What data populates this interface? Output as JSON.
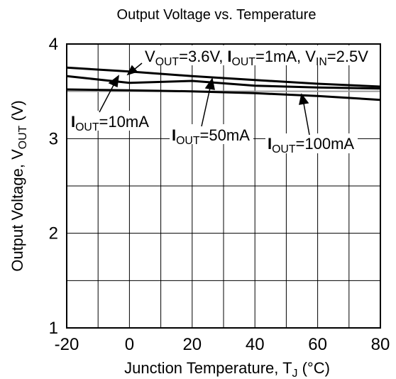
{
  "chart_data": {
    "type": "line",
    "title": "Output Voltage vs. Temperature",
    "xlabel": "Junction Temperature, T_J (°C)",
    "xlabel_parts": [
      "Junction Temperature, T",
      "J",
      " (°C)"
    ],
    "ylabel": "Output Voltage, V_OUT (V)",
    "ylabel_parts": [
      "Output Voltage, V",
      "OUT",
      " (V)"
    ],
    "xlim": [
      -20,
      80
    ],
    "ylim": [
      1,
      4
    ],
    "x_ticks": [
      -20,
      0,
      20,
      40,
      60,
      80
    ],
    "x_tick_labels": [
      "-20",
      "0",
      "20",
      "40",
      "60",
      "80"
    ],
    "x_minor_step": 10,
    "y_ticks": [
      1,
      2,
      3,
      4
    ],
    "y_tick_labels": [
      "1",
      "2",
      "3",
      "4"
    ],
    "y_minor_step": 0.5,
    "grid": true,
    "reference_line": 3.5,
    "condition_label_parts": [
      "V",
      "OUT",
      "=3.6V, ",
      "I",
      "OUT",
      "=1mA, V",
      "IN",
      "=2.5V"
    ],
    "series": [
      {
        "name": "I_OUT=10mA",
        "label_parts": [
          "I",
          "OUT",
          "=10mA"
        ],
        "x": [
          -20,
          0,
          20,
          40,
          60,
          80
        ],
        "values": [
          3.75,
          3.71,
          3.66,
          3.62,
          3.58,
          3.55
        ]
      },
      {
        "name": "I_OUT=50mA",
        "label_parts": [
          "I",
          "OUT",
          "=50mA"
        ],
        "x": [
          -20,
          0,
          20,
          40,
          60,
          80
        ],
        "values": [
          3.66,
          3.59,
          3.61,
          3.56,
          3.54,
          3.53
        ]
      },
      {
        "name": "I_OUT=100mA",
        "label_parts": [
          "I",
          "OUT",
          "=100mA"
        ],
        "x": [
          -20,
          0,
          20,
          40,
          60,
          80
        ],
        "values": [
          3.52,
          3.51,
          3.5,
          3.48,
          3.45,
          3.41
        ]
      }
    ]
  }
}
